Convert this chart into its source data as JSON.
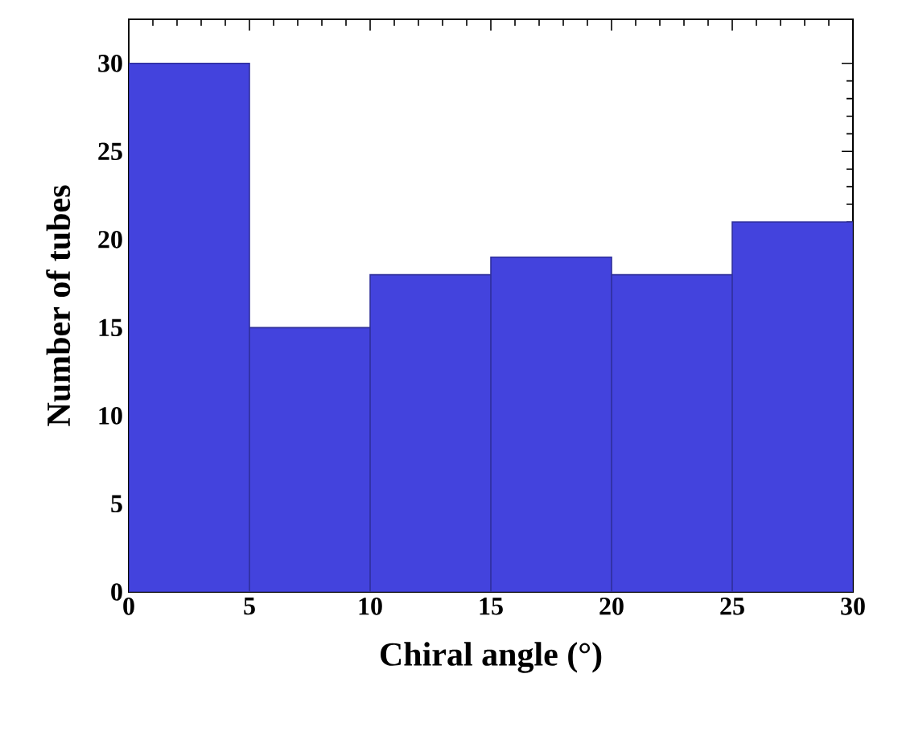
{
  "chart_data": {
    "type": "histogram",
    "xlabel": "Chiral angle (°)",
    "ylabel": "Number of tubes",
    "bins": [
      0,
      5,
      10,
      15,
      20,
      25,
      30
    ],
    "values": [
      30,
      15,
      18,
      19,
      18,
      21
    ],
    "color": "#4343dd",
    "xlim": [
      0,
      30
    ],
    "ylim": [
      0,
      32.5
    ],
    "xticks": [
      0,
      5,
      10,
      15,
      20,
      25,
      30
    ],
    "yticks": [
      0,
      5,
      10,
      15,
      20,
      25,
      30
    ],
    "grid": false
  }
}
